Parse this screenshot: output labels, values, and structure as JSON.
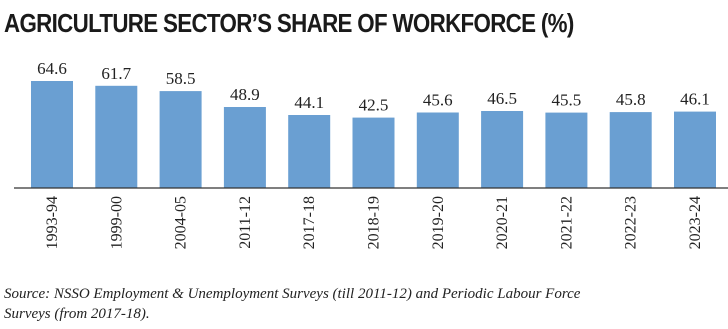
{
  "chart_data": {
    "type": "bar",
    "title": "AGRICULTURE SECTOR’S SHARE OF WORKFORCE (%)",
    "categories": [
      "1993-94",
      "1999-00",
      "2004-05",
      "2011-12",
      "2017-18",
      "2018-19",
      "2019-20",
      "2020-21",
      "2021-22",
      "2022-23",
      "2023-24"
    ],
    "values": [
      64.6,
      61.7,
      58.5,
      48.9,
      44.1,
      42.5,
      45.6,
      46.5,
      45.5,
      45.8,
      46.1
    ],
    "data_labels": [
      "64.6",
      "61.7",
      "58.5",
      "48.9",
      "44.1",
      "42.5",
      "45.6",
      "46.5",
      "45.5",
      "45.8",
      "46.1"
    ],
    "ylim": [
      0,
      64.6
    ],
    "grid": false,
    "legend": "none",
    "xlabel": "",
    "ylabel": "",
    "bar_color": "#6a9fd2"
  },
  "source": {
    "line1": "Source: NSSO Employment & Unemployment Surveys (till 2011-12) and Periodic Labour Force",
    "line2": "Surveys (from 2017-18)."
  }
}
